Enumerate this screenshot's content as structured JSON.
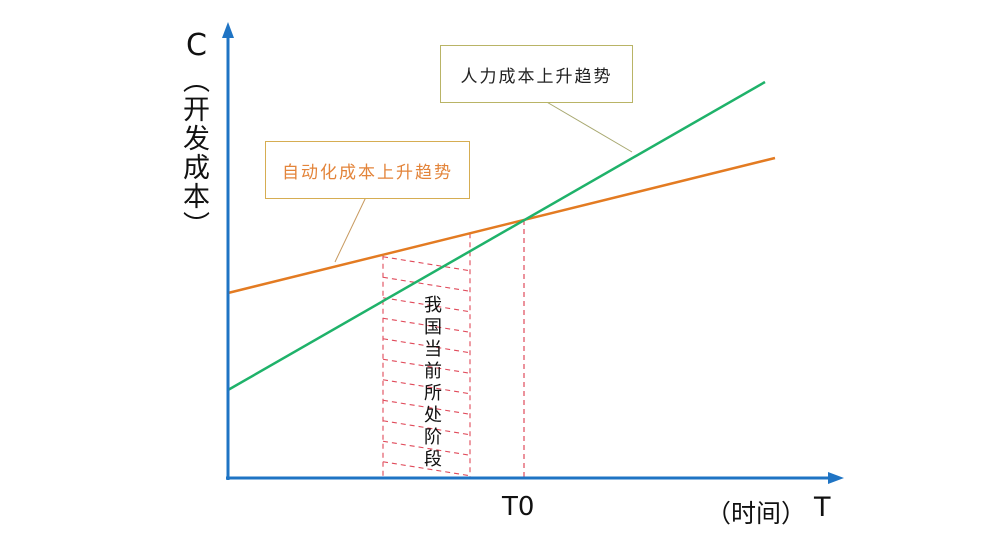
{
  "axes": {
    "y_label": "C",
    "y_sublabel": "（开发成本）",
    "x_label": "T",
    "x_sublabel": "（时间）",
    "x_marker": "T0"
  },
  "callouts": {
    "automation": "自动化成本上升趋势",
    "human": "人力成本上升趋势"
  },
  "region_label": "我国当前所处阶段",
  "colors": {
    "axis": "#1f74c4",
    "automation_line": "#e37b22",
    "human_line": "#1fb26a",
    "region_hatch": "#e04a5a"
  }
}
